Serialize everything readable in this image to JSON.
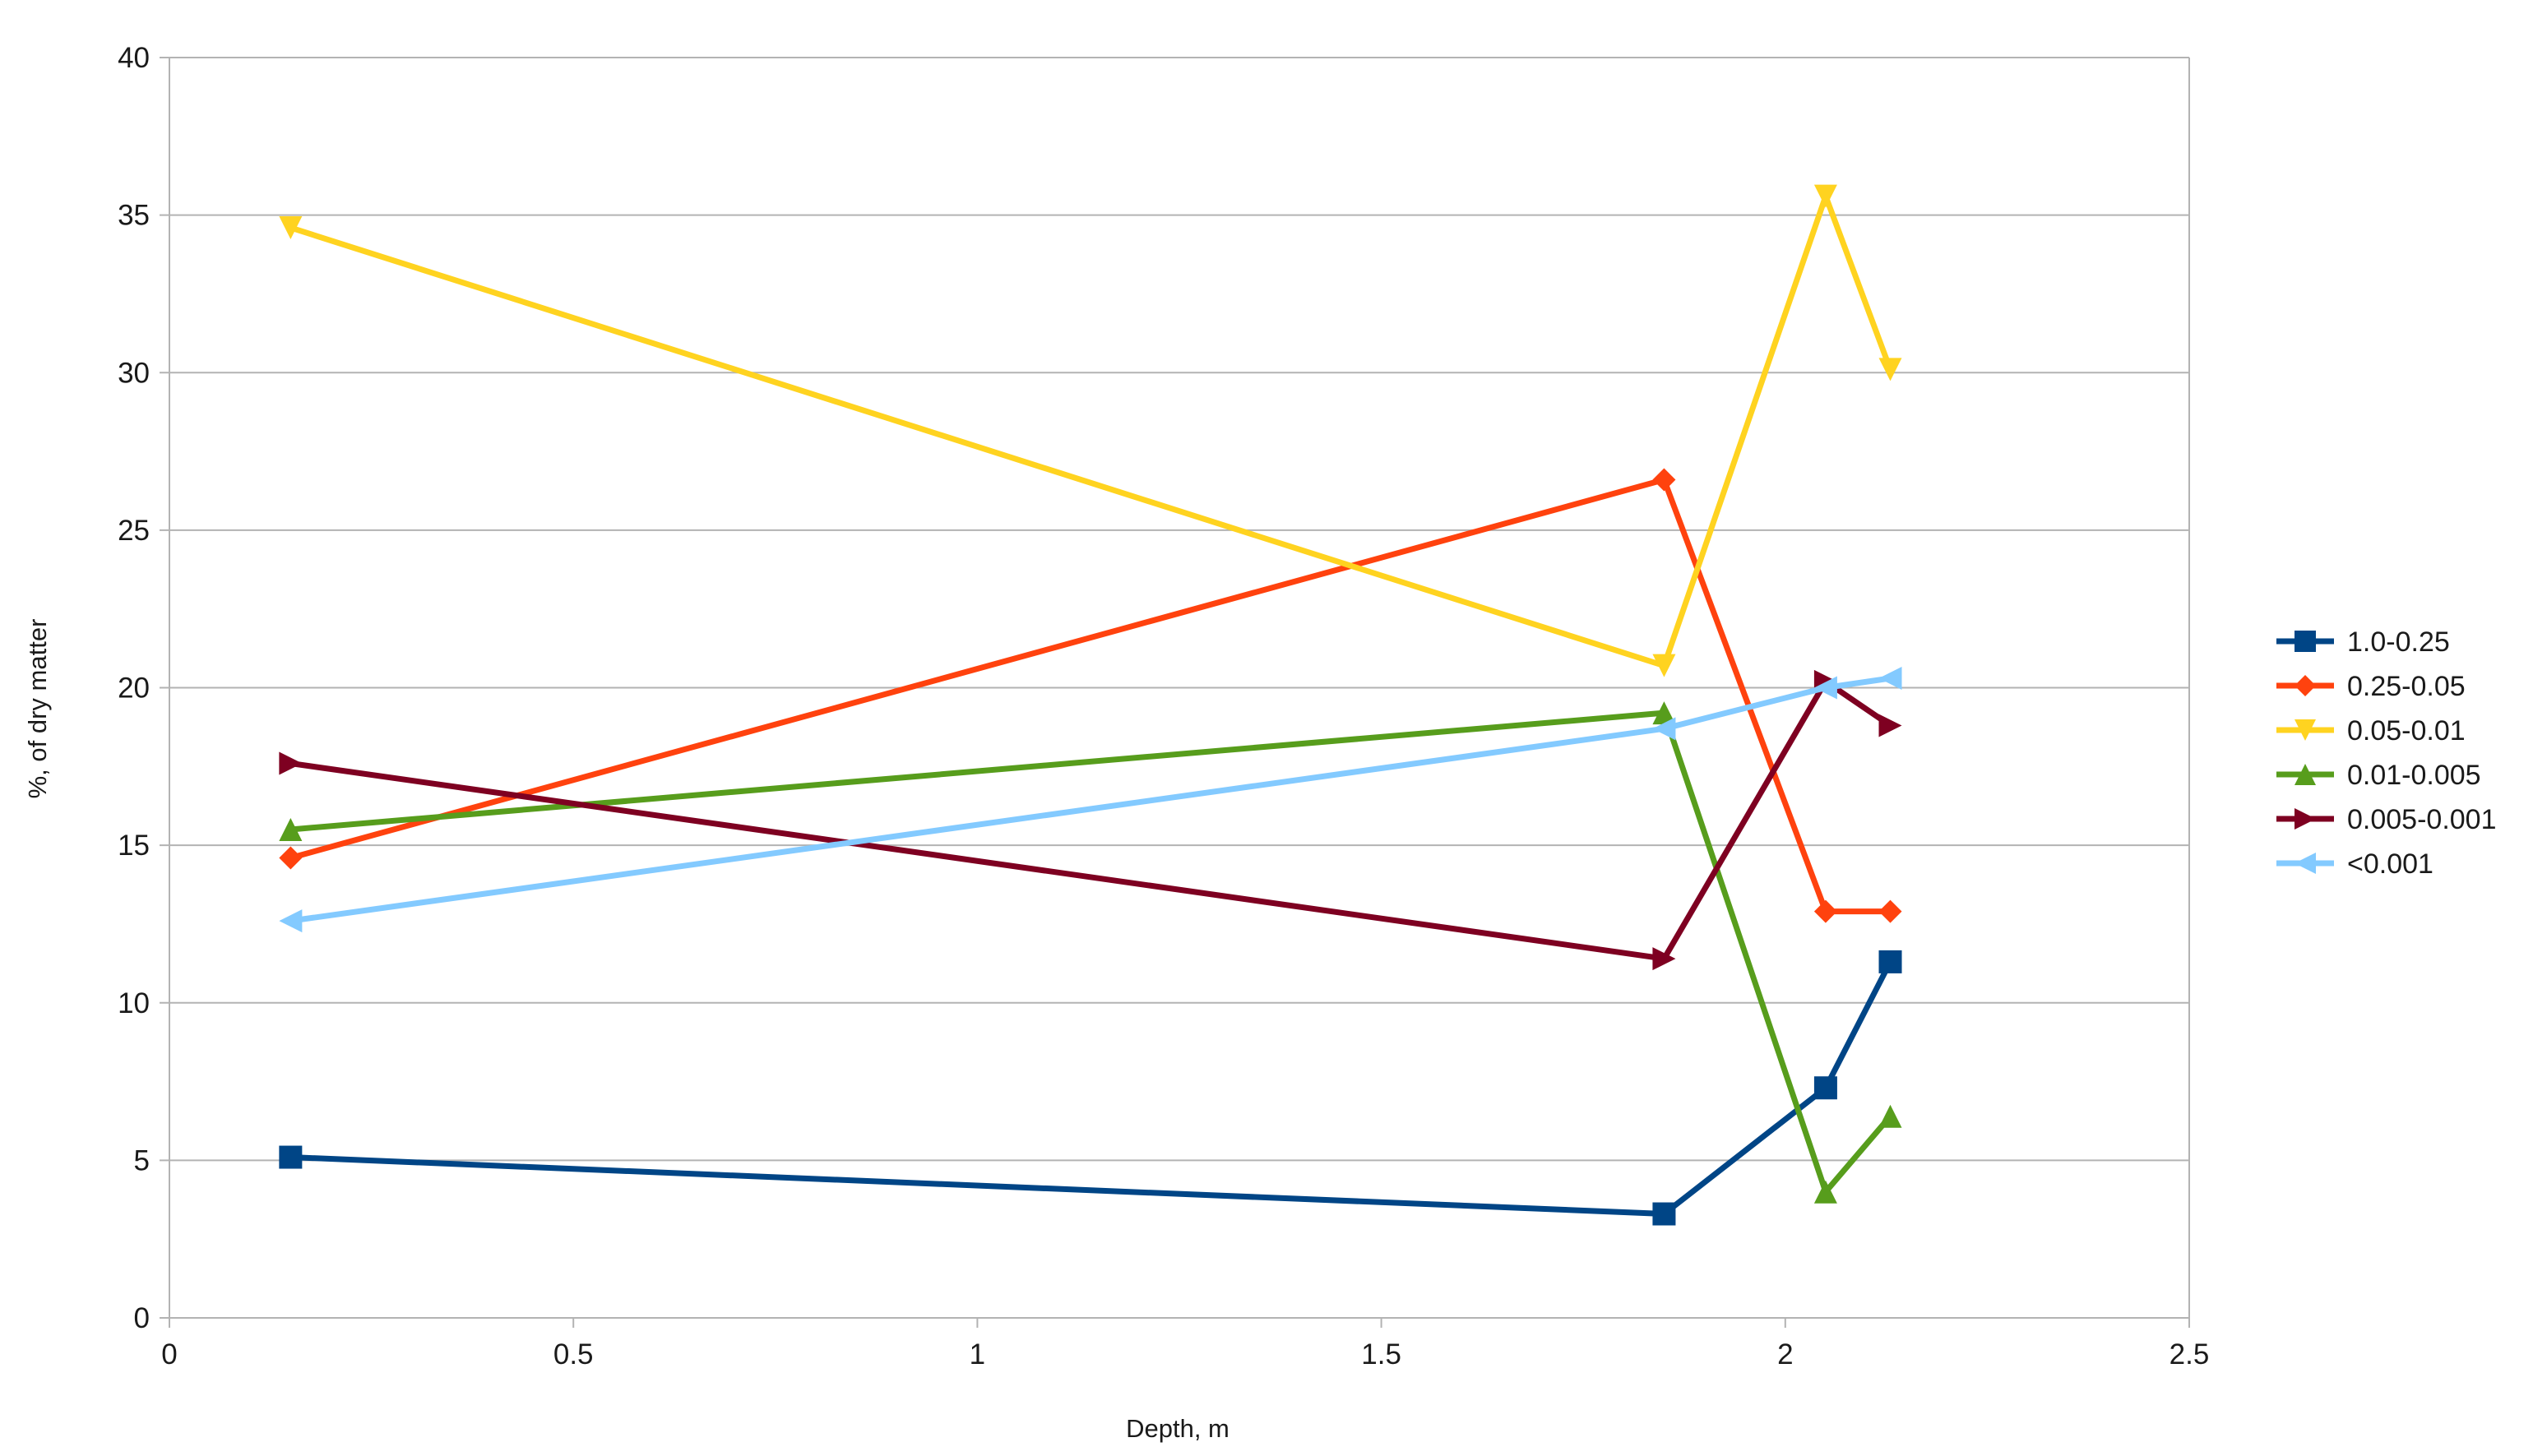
{
  "chart_data": {
    "type": "line",
    "xlabel": "Depth, m",
    "ylabel": "%, of dry matter",
    "xlim": [
      0,
      2.5
    ],
    "ylim": [
      0,
      40
    ],
    "x_ticks": [
      0,
      0.5,
      1,
      1.5,
      2,
      2.5
    ],
    "y_ticks": [
      0,
      5,
      10,
      15,
      20,
      25,
      30,
      35,
      40
    ],
    "x_tick_labels": [
      "0",
      "0.5",
      "1",
      "1.5",
      "2",
      "2.5"
    ],
    "y_tick_labels": [
      "0",
      "5",
      "10",
      "15",
      "20",
      "25",
      "30",
      "35",
      "40"
    ],
    "grid": "horizontal",
    "legend_position": "right",
    "x": [
      0.15,
      1.85,
      2.05,
      2.13
    ],
    "series": [
      {
        "name": "1.0-0.25",
        "color": "#004586",
        "marker": "square",
        "values": [
          5.1,
          3.3,
          7.3,
          11.3
        ]
      },
      {
        "name": "0.25-0.05",
        "color": "#ff420e",
        "marker": "diamond",
        "values": [
          14.6,
          26.6,
          12.9,
          12.9
        ]
      },
      {
        "name": "0.05-0.01",
        "color": "#ffd320",
        "marker": "triangle-down",
        "values": [
          34.6,
          20.7,
          35.6,
          30.1
        ]
      },
      {
        "name": "0.01-0.005",
        "color": "#579d1c",
        "marker": "triangle-up",
        "values": [
          15.5,
          19.2,
          4.0,
          6.4
        ]
      },
      {
        "name": "0.005-0.001",
        "color": "#7e0021",
        "marker": "triangle-right",
        "values": [
          17.6,
          11.4,
          20.2,
          18.8
        ]
      },
      {
        "name": "<0.001",
        "color": "#83caff",
        "marker": "triangle-left",
        "values": [
          12.6,
          18.7,
          20.0,
          20.3
        ]
      }
    ]
  }
}
